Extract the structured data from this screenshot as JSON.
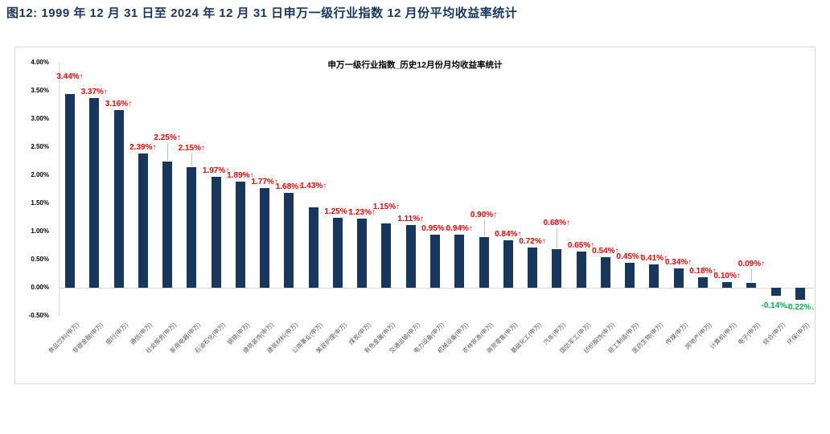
{
  "page_title": "图12: 1999 年 12 月 31 日至 2024 年 12 月 31 日申万一级行业指数 12 月份平均收益率统计",
  "colors": {
    "bar": "#17375E",
    "positive_label": "#FF0000",
    "negative_label": "#00B050",
    "axis": "#D9D9D9",
    "header_text": "#17375E"
  },
  "chart_data": {
    "type": "bar",
    "title": "申万一级行业指数_历史12月份月均收益率统计",
    "xlabel": "",
    "ylabel": "",
    "ylim": [
      -0.5,
      4.0
    ],
    "ytick_step": 0.5,
    "grid": false,
    "legend": "none",
    "ytick_labels": [
      "4.00%",
      "3.50%",
      "3.00%",
      "2.50%",
      "2.00%",
      "1.50%",
      "1.00%",
      "0.50%",
      "0.00%",
      "-0.50%"
    ],
    "categories": [
      "食品饮料(申万)",
      "非银金融(申万)",
      "银行(申万)",
      "通信(申万)",
      "社会服务(申万)",
      "家用电器(申万)",
      "石油石化(申万)",
      "钢铁(申万)",
      "建筑装饰(申万)",
      "建筑材料(申万)",
      "公用事业(申万)",
      "美容护理(申万)",
      "煤炭(申万)",
      "有色金属(申万)",
      "交通运输(申万)",
      "电力设备(申万)",
      "机械设备(申万)",
      "农林牧渔(申万)",
      "商贸零售(申万)",
      "基础化工(申万)",
      "汽车(申万)",
      "国防军工(申万)",
      "纺织服饰(申万)",
      "轻工制造(申万)",
      "医药生物(申万)",
      "传媒(申万)",
      "房地产(申万)",
      "计算机(申万)",
      "电子(申万)",
      "综合(申万)",
      "环保(申万)"
    ],
    "values": [
      3.44,
      3.37,
      3.16,
      2.39,
      2.25,
      2.15,
      1.97,
      1.89,
      1.77,
      1.68,
      1.43,
      1.25,
      1.23,
      1.15,
      1.11,
      0.95,
      0.94,
      0.9,
      0.84,
      0.72,
      0.68,
      0.65,
      0.54,
      0.45,
      0.41,
      0.34,
      0.18,
      0.1,
      0.09,
      -0.14,
      -0.22
    ],
    "value_labels": [
      "3.44%↑",
      "3.37%↑",
      "3.16%↑",
      "2.39%↑",
      "2.25%↑",
      "2.15%↑",
      "1.97%↑",
      "1.89%↑",
      "1.77%↑",
      "1.68%↑",
      "1.43%↑",
      "1.25%↑",
      "1.23%↑",
      "1.15%↑",
      "1.11%↑",
      "0.95%↑",
      "0.94%↑",
      "0.90%↑",
      "0.84%↑",
      "0.72%↑",
      "0.68%↑",
      "0.65%↑",
      "0.54%↑",
      "0.45%↑",
      "0.41%↑",
      "0.34%↑",
      "0.18%↑",
      "0.10%↑",
      "0.09%↑",
      "-0.14%↓",
      "-0.22%↓"
    ]
  }
}
